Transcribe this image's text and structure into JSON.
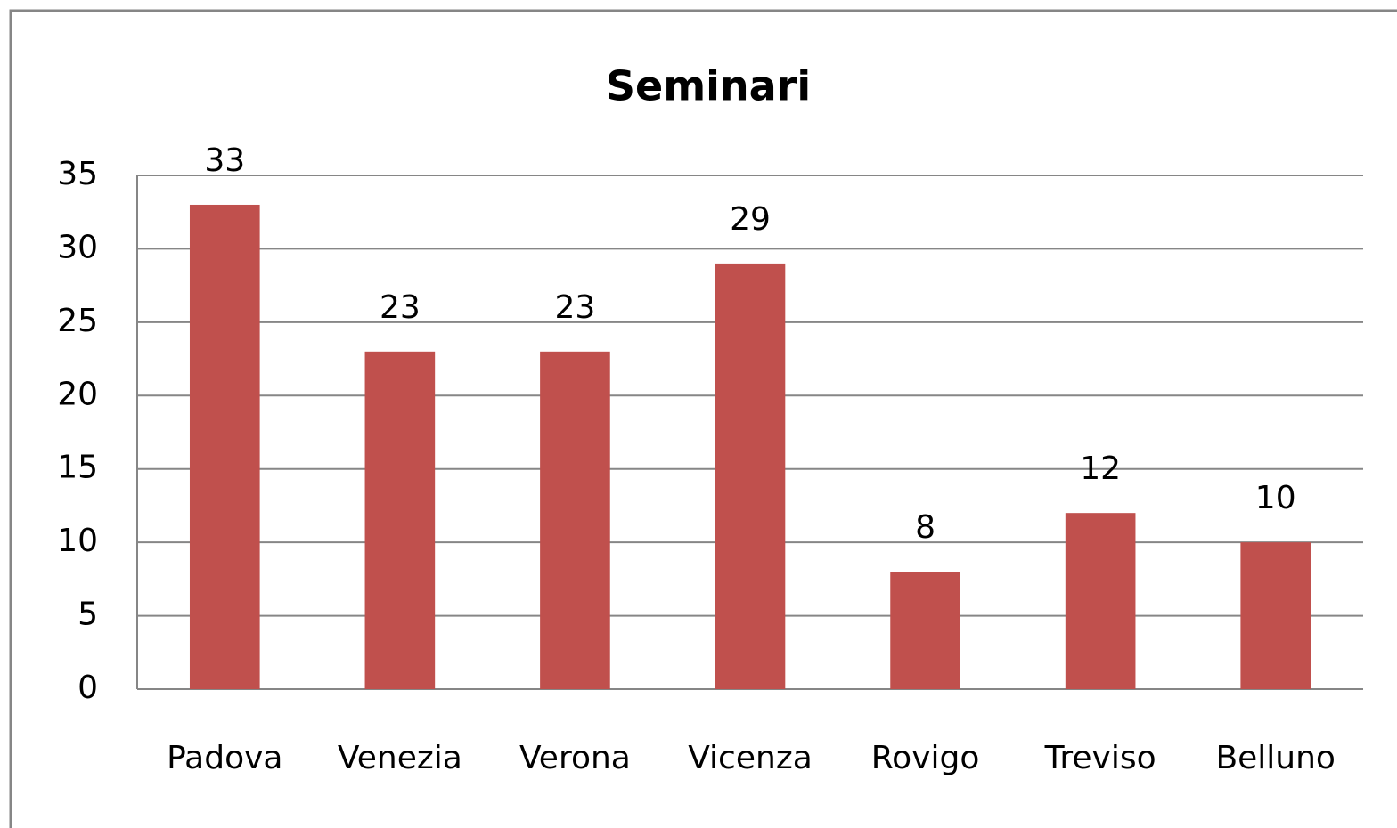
{
  "chart_data": {
    "type": "bar",
    "title": "Seminari",
    "categories": [
      "Padova",
      "Venezia",
      "Verona",
      "Vicenza",
      "Rovigo",
      "Treviso",
      "Belluno"
    ],
    "values": [
      33,
      23,
      23,
      29,
      8,
      12,
      10
    ],
    "color": "#c0504d",
    "ylim": [
      0,
      35
    ],
    "yticks": [
      0,
      5,
      10,
      15,
      20,
      25,
      30,
      35
    ],
    "grid": true
  }
}
